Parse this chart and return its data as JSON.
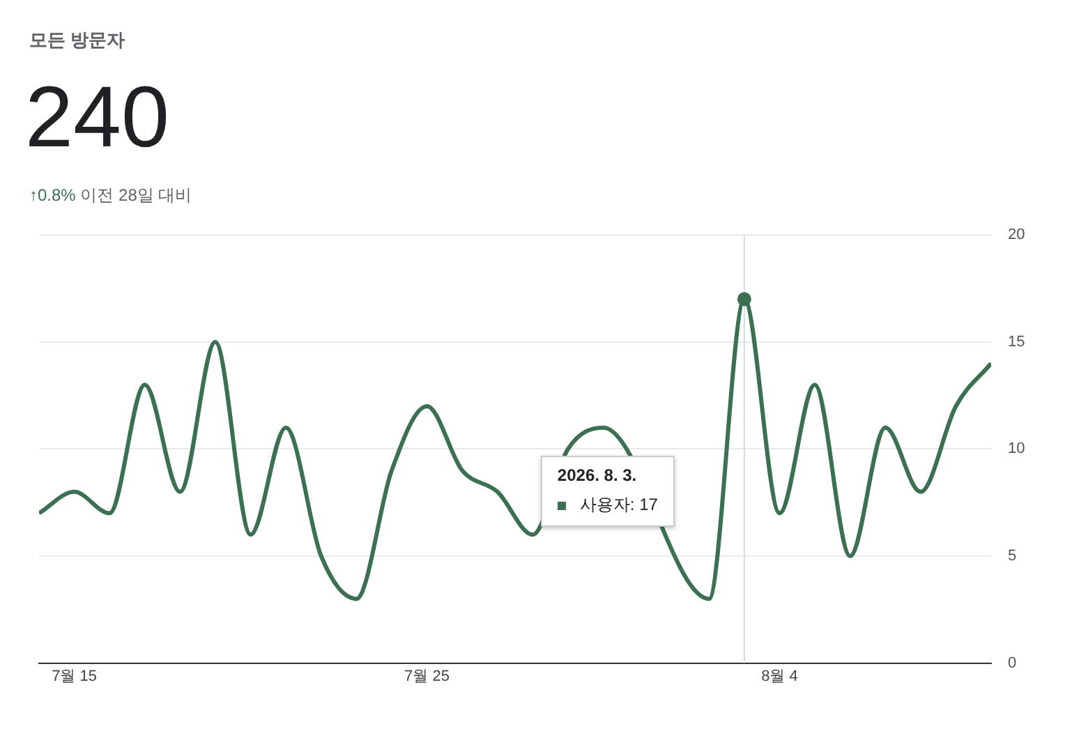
{
  "chart_data": {
    "type": "line",
    "title": "모든 방문자",
    "subtitle": "240",
    "annotations": [
      "↑0.8%",
      "이전 28일 대비",
      "2026. 8. 3.",
      "사용자: 17"
    ],
    "x": [
      "2026-07-14",
      "2026-07-15",
      "2026-07-16",
      "2026-07-17",
      "2026-07-18",
      "2026-07-19",
      "2026-07-20",
      "2026-07-21",
      "2026-07-22",
      "2026-07-23",
      "2026-07-24",
      "2026-07-25",
      "2026-07-26",
      "2026-07-27",
      "2026-07-28",
      "2026-07-29",
      "2026-07-30",
      "2026-07-31",
      "2026-08-01",
      "2026-08-02",
      "2026-08-03",
      "2026-08-04",
      "2026-08-05",
      "2026-08-06",
      "2026-08-07",
      "2026-08-08",
      "2026-08-09",
      "2026-08-10"
    ],
    "series": [
      {
        "color": "#3b7052",
        "values": [
          7,
          8,
          7,
          13,
          8,
          15,
          6,
          11,
          5,
          3,
          9,
          12,
          9,
          8,
          6,
          10,
          11,
          null,
          null,
          3,
          17,
          7,
          13,
          5,
          11,
          8,
          12,
          14
        ]
      }
    ],
    "xlim": [
      "2026-07-14",
      "2026-08-10"
    ],
    "xticks": [
      {
        "value": "2026-07-15",
        "label": "7월 15"
      },
      {
        "value": "2026-07-25",
        "label": "7월 25"
      },
      {
        "value": "2026-08-04",
        "label": "8월 4"
      }
    ],
    "ylim": [
      0,
      20
    ],
    "yticks": [
      0,
      5,
      10,
      15,
      20
    ],
    "ref_lines": [
      {
        "axis": "x",
        "value": "2026-08-03",
        "color": "#cfe0dc"
      }
    ],
    "grid": "y",
    "marker": "none",
    "line_style": "solid"
  }
}
